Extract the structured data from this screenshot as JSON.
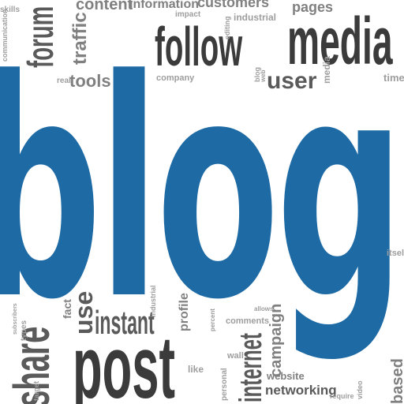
{
  "cloud": {
    "hero": "blog",
    "follow": "follow",
    "media": "media",
    "post": "post",
    "instant": "instant",
    "user": "user",
    "share": "share",
    "forum": "forum",
    "traffic": "traffic",
    "content": "content",
    "information": "information",
    "customers": "customers",
    "pages": "pages",
    "tools": "tools",
    "company": "company",
    "industrial": "industrial",
    "impact": "impact",
    "communication": "communication",
    "real": "real",
    "time": "time",
    "use": "use",
    "fact": "fact",
    "internet": "internet",
    "campaign": "campaign",
    "website": "website",
    "networking": "networking",
    "comments": "comments",
    "profile": "profile",
    "like": "like",
    "wall": "wall",
    "video": "video",
    "based": "based",
    "itself": "itself",
    "skills": "skills",
    "target": "target",
    "allows": "allows",
    "require": "require",
    "personal": "personal",
    "editing": "editing",
    "types": "types",
    "media_small": "media",
    "blog_small": "blog",
    "web": "web",
    "industrial_small": "industrial",
    "percent": "percent",
    "subscribers": "subscribers"
  },
  "colors": {
    "accent": "#1d6aa5",
    "text_dark": "#3b3b3b",
    "text_mid": "#5a5a5a",
    "text_light": "#9e9e9e"
  }
}
